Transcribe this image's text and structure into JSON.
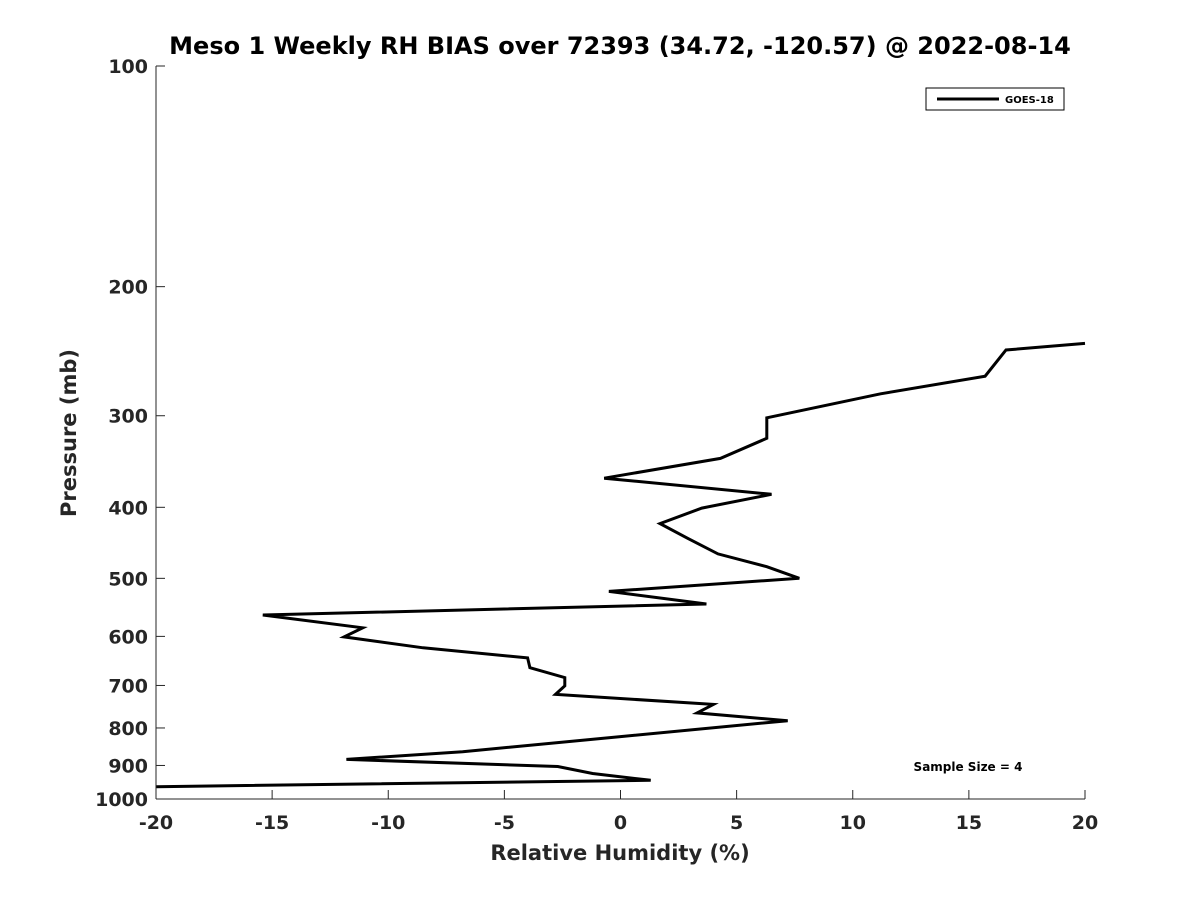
{
  "chart_data": {
    "type": "line",
    "title": "Meso 1 Weekly RH BIAS over 72393 (34.72, -120.57) @ 2022-08-14",
    "xlabel": "Relative Humidity (%)",
    "ylabel": "Pressure (mb)",
    "xlim": [
      -20,
      20
    ],
    "ylim": [
      100,
      1000
    ],
    "y_scale": "log",
    "y_reversed": true,
    "grid": false,
    "legend_position": "top-right",
    "x_ticks": [
      -20,
      -15,
      -10,
      -5,
      0,
      5,
      10,
      15,
      20
    ],
    "y_ticks": [
      100,
      200,
      300,
      400,
      500,
      600,
      700,
      800,
      900,
      1000
    ],
    "series": [
      {
        "name": "GOES-18",
        "color": "#000000",
        "points": [
          {
            "x": 20.0,
            "y": 239
          },
          {
            "x": 16.6,
            "y": 244
          },
          {
            "x": 15.7,
            "y": 265
          },
          {
            "x": 11.2,
            "y": 280
          },
          {
            "x": 6.3,
            "y": 302
          },
          {
            "x": 6.3,
            "y": 322
          },
          {
            "x": 4.3,
            "y": 343
          },
          {
            "x": -0.7,
            "y": 365
          },
          {
            "x": 6.5,
            "y": 384
          },
          {
            "x": 3.5,
            "y": 401
          },
          {
            "x": 1.7,
            "y": 421
          },
          {
            "x": 2.9,
            "y": 441
          },
          {
            "x": 4.2,
            "y": 463
          },
          {
            "x": 6.3,
            "y": 482
          },
          {
            "x": 7.7,
            "y": 500
          },
          {
            "x": -0.5,
            "y": 521
          },
          {
            "x": 3.7,
            "y": 542
          },
          {
            "x": -15.4,
            "y": 561
          },
          {
            "x": -11.1,
            "y": 584
          },
          {
            "x": -11.9,
            "y": 601
          },
          {
            "x": -8.5,
            "y": 622
          },
          {
            "x": -4.0,
            "y": 642
          },
          {
            "x": -3.9,
            "y": 662
          },
          {
            "x": -2.4,
            "y": 683
          },
          {
            "x": -2.4,
            "y": 701
          },
          {
            "x": -2.8,
            "y": 720
          },
          {
            "x": 4.0,
            "y": 743
          },
          {
            "x": 3.3,
            "y": 763
          },
          {
            "x": 7.2,
            "y": 782
          },
          {
            "x": 0.0,
            "y": 822
          },
          {
            "x": -6.8,
            "y": 862
          },
          {
            "x": -11.8,
            "y": 883
          },
          {
            "x": -2.7,
            "y": 903
          },
          {
            "x": -1.2,
            "y": 923
          },
          {
            "x": 1.3,
            "y": 943
          },
          {
            "x": -20.0,
            "y": 962
          }
        ]
      }
    ],
    "annotations": [
      "Sample Size = 4"
    ]
  }
}
